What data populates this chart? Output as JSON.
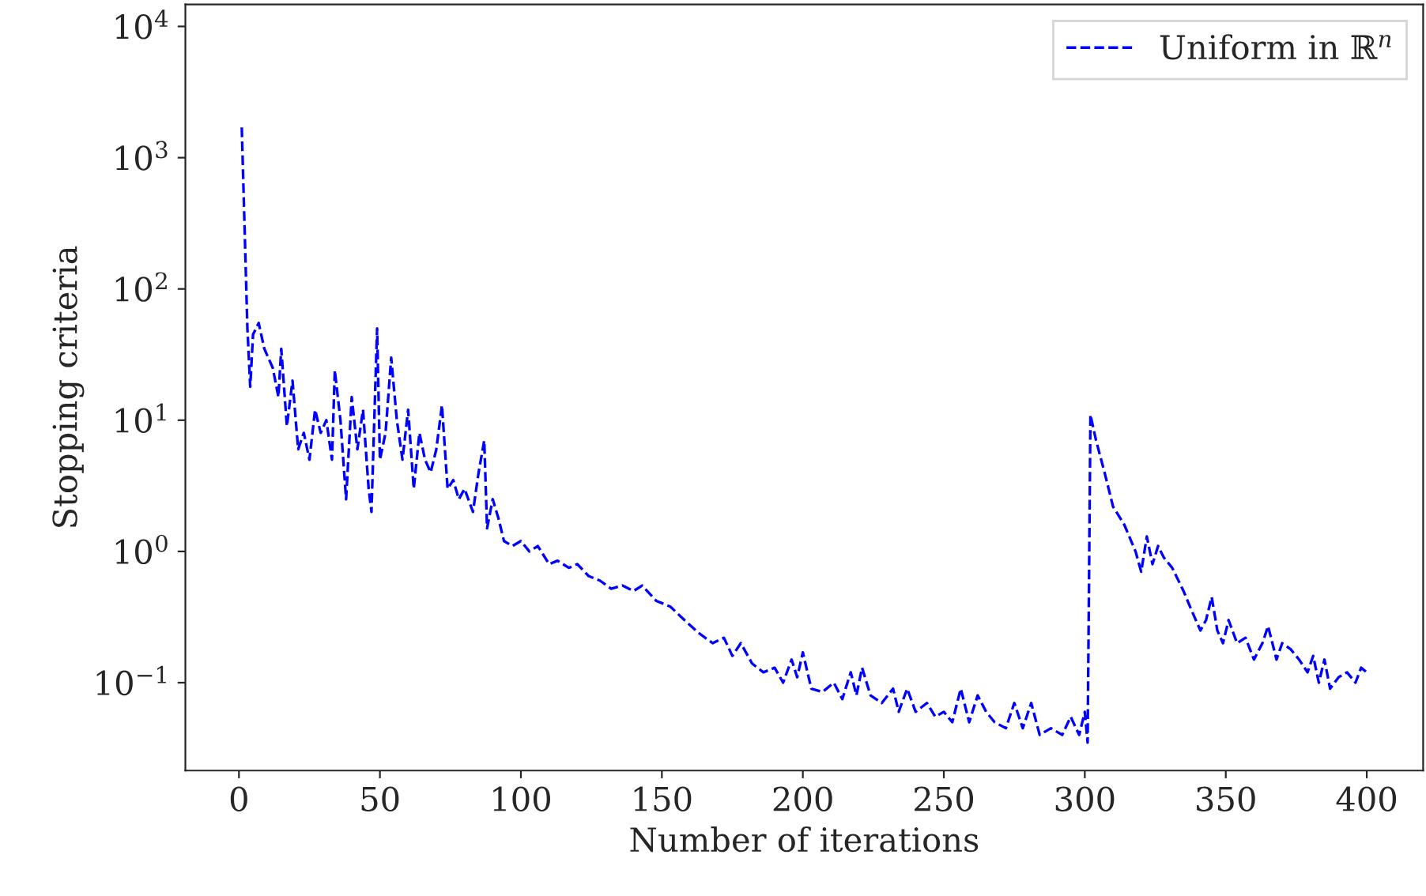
{
  "chart_data": {
    "type": "line",
    "xlabel": "Number of iterations",
    "ylabel": "Stopping criteria",
    "x": [
      1,
      3,
      4,
      5,
      7,
      9,
      12,
      14,
      15,
      17,
      19,
      21,
      23,
      25,
      27,
      29,
      31,
      33,
      34,
      36,
      38,
      40,
      42,
      44,
      46,
      47,
      49,
      50,
      52,
      54,
      56,
      58,
      60,
      62,
      64,
      66,
      68,
      70,
      72,
      74,
      76,
      78,
      80,
      83,
      85,
      87,
      88,
      90,
      92,
      94,
      97,
      100,
      103,
      106,
      110,
      113,
      117,
      120,
      124,
      128,
      132,
      136,
      140,
      143,
      148,
      153,
      158,
      163,
      168,
      172,
      175,
      178,
      182,
      186,
      190,
      193,
      196,
      198,
      200,
      203,
      207,
      211,
      214,
      217,
      219,
      221,
      224,
      228,
      232,
      234,
      237,
      240,
      244,
      247,
      250,
      253,
      256,
      259,
      262,
      265,
      268,
      272,
      275,
      278,
      281,
      284,
      288,
      292,
      295,
      298,
      300,
      301,
      302,
      304,
      307,
      310,
      314,
      318,
      320,
      322,
      324,
      326,
      328,
      331,
      335,
      338,
      341,
      343,
      345,
      347,
      349,
      351,
      354,
      357,
      360,
      363,
      365,
      368,
      370,
      373,
      376,
      379,
      381,
      383,
      385,
      387,
      390,
      393,
      396,
      398,
      400
    ],
    "series": [
      {
        "name": "Uniform in ℝ$^{n}$",
        "color": "#0000ff",
        "values": [
          1700,
          50,
          18,
          45,
          55,
          35,
          25,
          15,
          35,
          9,
          20,
          6,
          8,
          5,
          12,
          8,
          10,
          5,
          24,
          10,
          2.5,
          15,
          6,
          12,
          3,
          2,
          50,
          5,
          8,
          30,
          10,
          5,
          12,
          3,
          8,
          5,
          4,
          6,
          13,
          3,
          3.5,
          2.5,
          3,
          2,
          4,
          7,
          1.5,
          2.5,
          1.8,
          1.2,
          1.1,
          1.2,
          1.0,
          1.1,
          0.8,
          0.85,
          0.75,
          0.8,
          0.65,
          0.6,
          0.52,
          0.55,
          0.5,
          0.55,
          0.42,
          0.38,
          0.3,
          0.24,
          0.2,
          0.22,
          0.16,
          0.2,
          0.14,
          0.12,
          0.13,
          0.1,
          0.15,
          0.11,
          0.17,
          0.09,
          0.085,
          0.1,
          0.075,
          0.12,
          0.08,
          0.13,
          0.08,
          0.07,
          0.09,
          0.06,
          0.09,
          0.06,
          0.07,
          0.055,
          0.06,
          0.05,
          0.09,
          0.05,
          0.08,
          0.06,
          0.05,
          0.045,
          0.07,
          0.045,
          0.07,
          0.04,
          0.045,
          0.04,
          0.055,
          0.04,
          0.06,
          0.035,
          11,
          7,
          4,
          2.2,
          1.6,
          1.0,
          0.7,
          1.3,
          0.8,
          1.1,
          0.9,
          0.75,
          0.5,
          0.35,
          0.25,
          0.3,
          0.45,
          0.25,
          0.2,
          0.3,
          0.2,
          0.22,
          0.15,
          0.2,
          0.27,
          0.15,
          0.2,
          0.18,
          0.15,
          0.12,
          0.16,
          0.1,
          0.15,
          0.09,
          0.11,
          0.12,
          0.1,
          0.13,
          0.12
        ]
      }
    ],
    "log": "y",
    "xlim": [
      -19,
      420
    ],
    "ylim": [
      0.0214,
      14700
    ],
    "xticks": [
      0,
      50,
      100,
      150,
      200,
      250,
      300,
      350,
      400
    ],
    "yticks": [
      {
        "value": 0.1,
        "label": "10$^{−1}$"
      },
      {
        "value": 1,
        "label": "10$^{0}$"
      },
      {
        "value": 10,
        "label": "10$^{1}$"
      },
      {
        "value": 100,
        "label": "10$^{2}$"
      },
      {
        "value": 1000,
        "label": "10$^{3}$"
      },
      {
        "value": 10000,
        "label": "10$^{4}$"
      }
    ],
    "line_style": "dashed",
    "marker": "none",
    "legend": "top right",
    "grid": false
  }
}
